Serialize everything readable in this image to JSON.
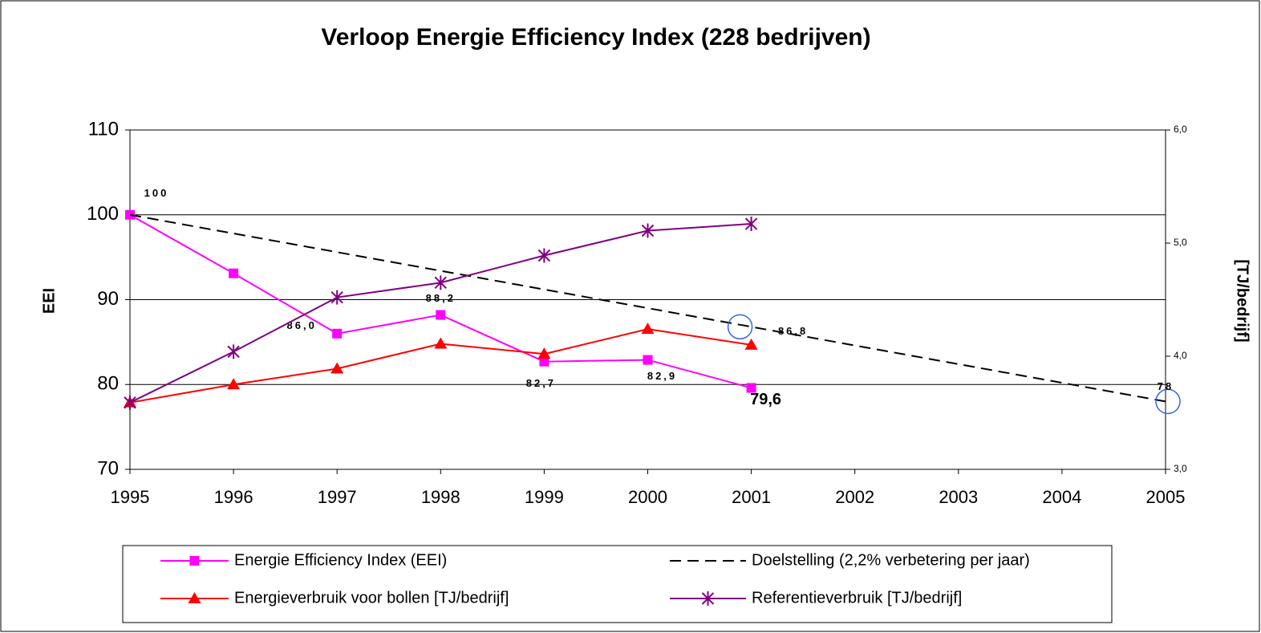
{
  "chart_data": {
    "type": "line",
    "title": "Verloop Energie Efficiency Index (228 bedrijven)",
    "ylabel": "EEI",
    "y2label": "[TJ/bedrijf]",
    "x": [
      1995,
      1996,
      1997,
      1998,
      1999,
      2000,
      2001,
      2002,
      2003,
      2004,
      2005
    ],
    "xlim": [
      1995,
      2005
    ],
    "xticks": [
      1995,
      1996,
      1997,
      1998,
      1999,
      2000,
      2001,
      2002,
      2003,
      2004,
      2005
    ],
    "ylim": [
      70,
      110
    ],
    "yticks": [
      70,
      80,
      90,
      100,
      110
    ],
    "y2lim": [
      3,
      6
    ],
    "y2ticks": [
      {
        "value": 3,
        "label": "3,0"
      },
      {
        "value": 4,
        "label": "4,0"
      },
      {
        "value": 5,
        "label": "5,0"
      },
      {
        "value": 6,
        "label": "6,0"
      }
    ],
    "grid": true,
    "legend": "bottom",
    "series": [
      {
        "name": "Energie Efficiency Index (EEI)",
        "color": "#ff00ff",
        "marker": "square",
        "style": "solid",
        "values": [
          100,
          93.1,
          86.0,
          88.2,
          82.7,
          82.9,
          79.6,
          null,
          null,
          null,
          null
        ],
        "value_labels": [
          "100",
          null,
          "86,0",
          "88,2",
          "82,7",
          "82,9",
          "79,6",
          null,
          null,
          null,
          null
        ]
      },
      {
        "name": "Doelstelling (2,2% verbetering per jaar)",
        "color": "#000000",
        "marker": "none",
        "style": "dashed",
        "values": [
          100,
          97.8,
          95.6,
          93.4,
          91.2,
          89.0,
          86.8,
          84.6,
          82.4,
          80.2,
          78
        ],
        "value_labels": [
          null,
          null,
          null,
          null,
          null,
          null,
          "86,8",
          null,
          null,
          null,
          "78"
        ]
      },
      {
        "name": "Energieverbruik voor bollen [TJ/bedrijf]",
        "color": "#ff0000",
        "marker": "triangle",
        "style": "solid",
        "axis": "y2",
        "values": [
          3.59,
          3.75,
          3.89,
          4.11,
          4.02,
          4.24,
          4.1,
          null,
          null,
          null,
          null
        ]
      },
      {
        "name": "Referentieverbruik [TJ/bedrijf]",
        "color": "#800080",
        "marker": "star",
        "style": "solid",
        "axis": "y2",
        "values": [
          3.59,
          4.04,
          4.52,
          4.65,
          4.89,
          5.11,
          5.17,
          null,
          null,
          null,
          null
        ]
      }
    ]
  }
}
